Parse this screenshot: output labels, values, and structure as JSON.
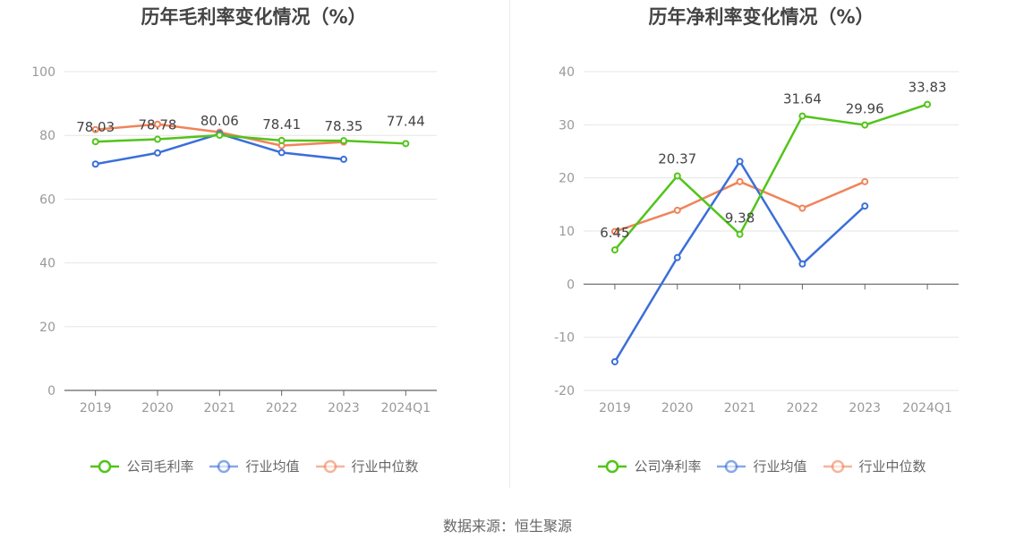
{
  "source_text": "数据来源：恒生聚源",
  "chart_data": [
    {
      "type": "line",
      "title": "历年毛利率变化情况（%）",
      "categories": [
        "2019",
        "2020",
        "2021",
        "2022",
        "2023",
        "2024Q1"
      ],
      "ylim": [
        0,
        100
      ],
      "yticks": [
        0,
        20,
        40,
        60,
        80,
        100
      ],
      "grid": true,
      "legend_position": "bottom",
      "labeled_series": 0,
      "series": [
        {
          "name": "公司毛利率",
          "color": "#52c41a",
          "values": [
            78.03,
            78.78,
            80.06,
            78.41,
            78.35,
            77.44
          ]
        },
        {
          "name": "行业均值",
          "color": "#3a6fd8",
          "values": [
            71.0,
            74.5,
            80.5,
            74.6,
            72.5,
            null
          ]
        },
        {
          "name": "行业中位数",
          "color": "#f0845a",
          "values": [
            81.8,
            83.5,
            81.0,
            76.8,
            77.9,
            null
          ]
        }
      ],
      "data_labels": [
        "78.03",
        "78.78",
        "80.06",
        "78.41",
        "78.35",
        "77.44"
      ]
    },
    {
      "type": "line",
      "title": "历年净利率变化情况（%）",
      "categories": [
        "2019",
        "2020",
        "2021",
        "2022",
        "2023",
        "2024Q1"
      ],
      "ylim": [
        -20,
        40
      ],
      "yticks": [
        -20,
        -10,
        0,
        10,
        20,
        30,
        40
      ],
      "grid": true,
      "legend_position": "bottom",
      "labeled_series": 0,
      "series": [
        {
          "name": "公司净利率",
          "color": "#52c41a",
          "values": [
            6.45,
            20.37,
            9.38,
            31.64,
            29.96,
            33.83
          ]
        },
        {
          "name": "行业均值",
          "color": "#3a6fd8",
          "values": [
            -14.6,
            5.0,
            23.1,
            3.8,
            14.7,
            null
          ]
        },
        {
          "name": "行业中位数",
          "color": "#f0845a",
          "values": [
            9.9,
            13.9,
            19.3,
            14.3,
            19.3,
            null
          ]
        }
      ],
      "data_labels": [
        "6.45",
        "20.37",
        "9.38",
        "31.64",
        "29.96",
        "33.83"
      ]
    }
  ]
}
